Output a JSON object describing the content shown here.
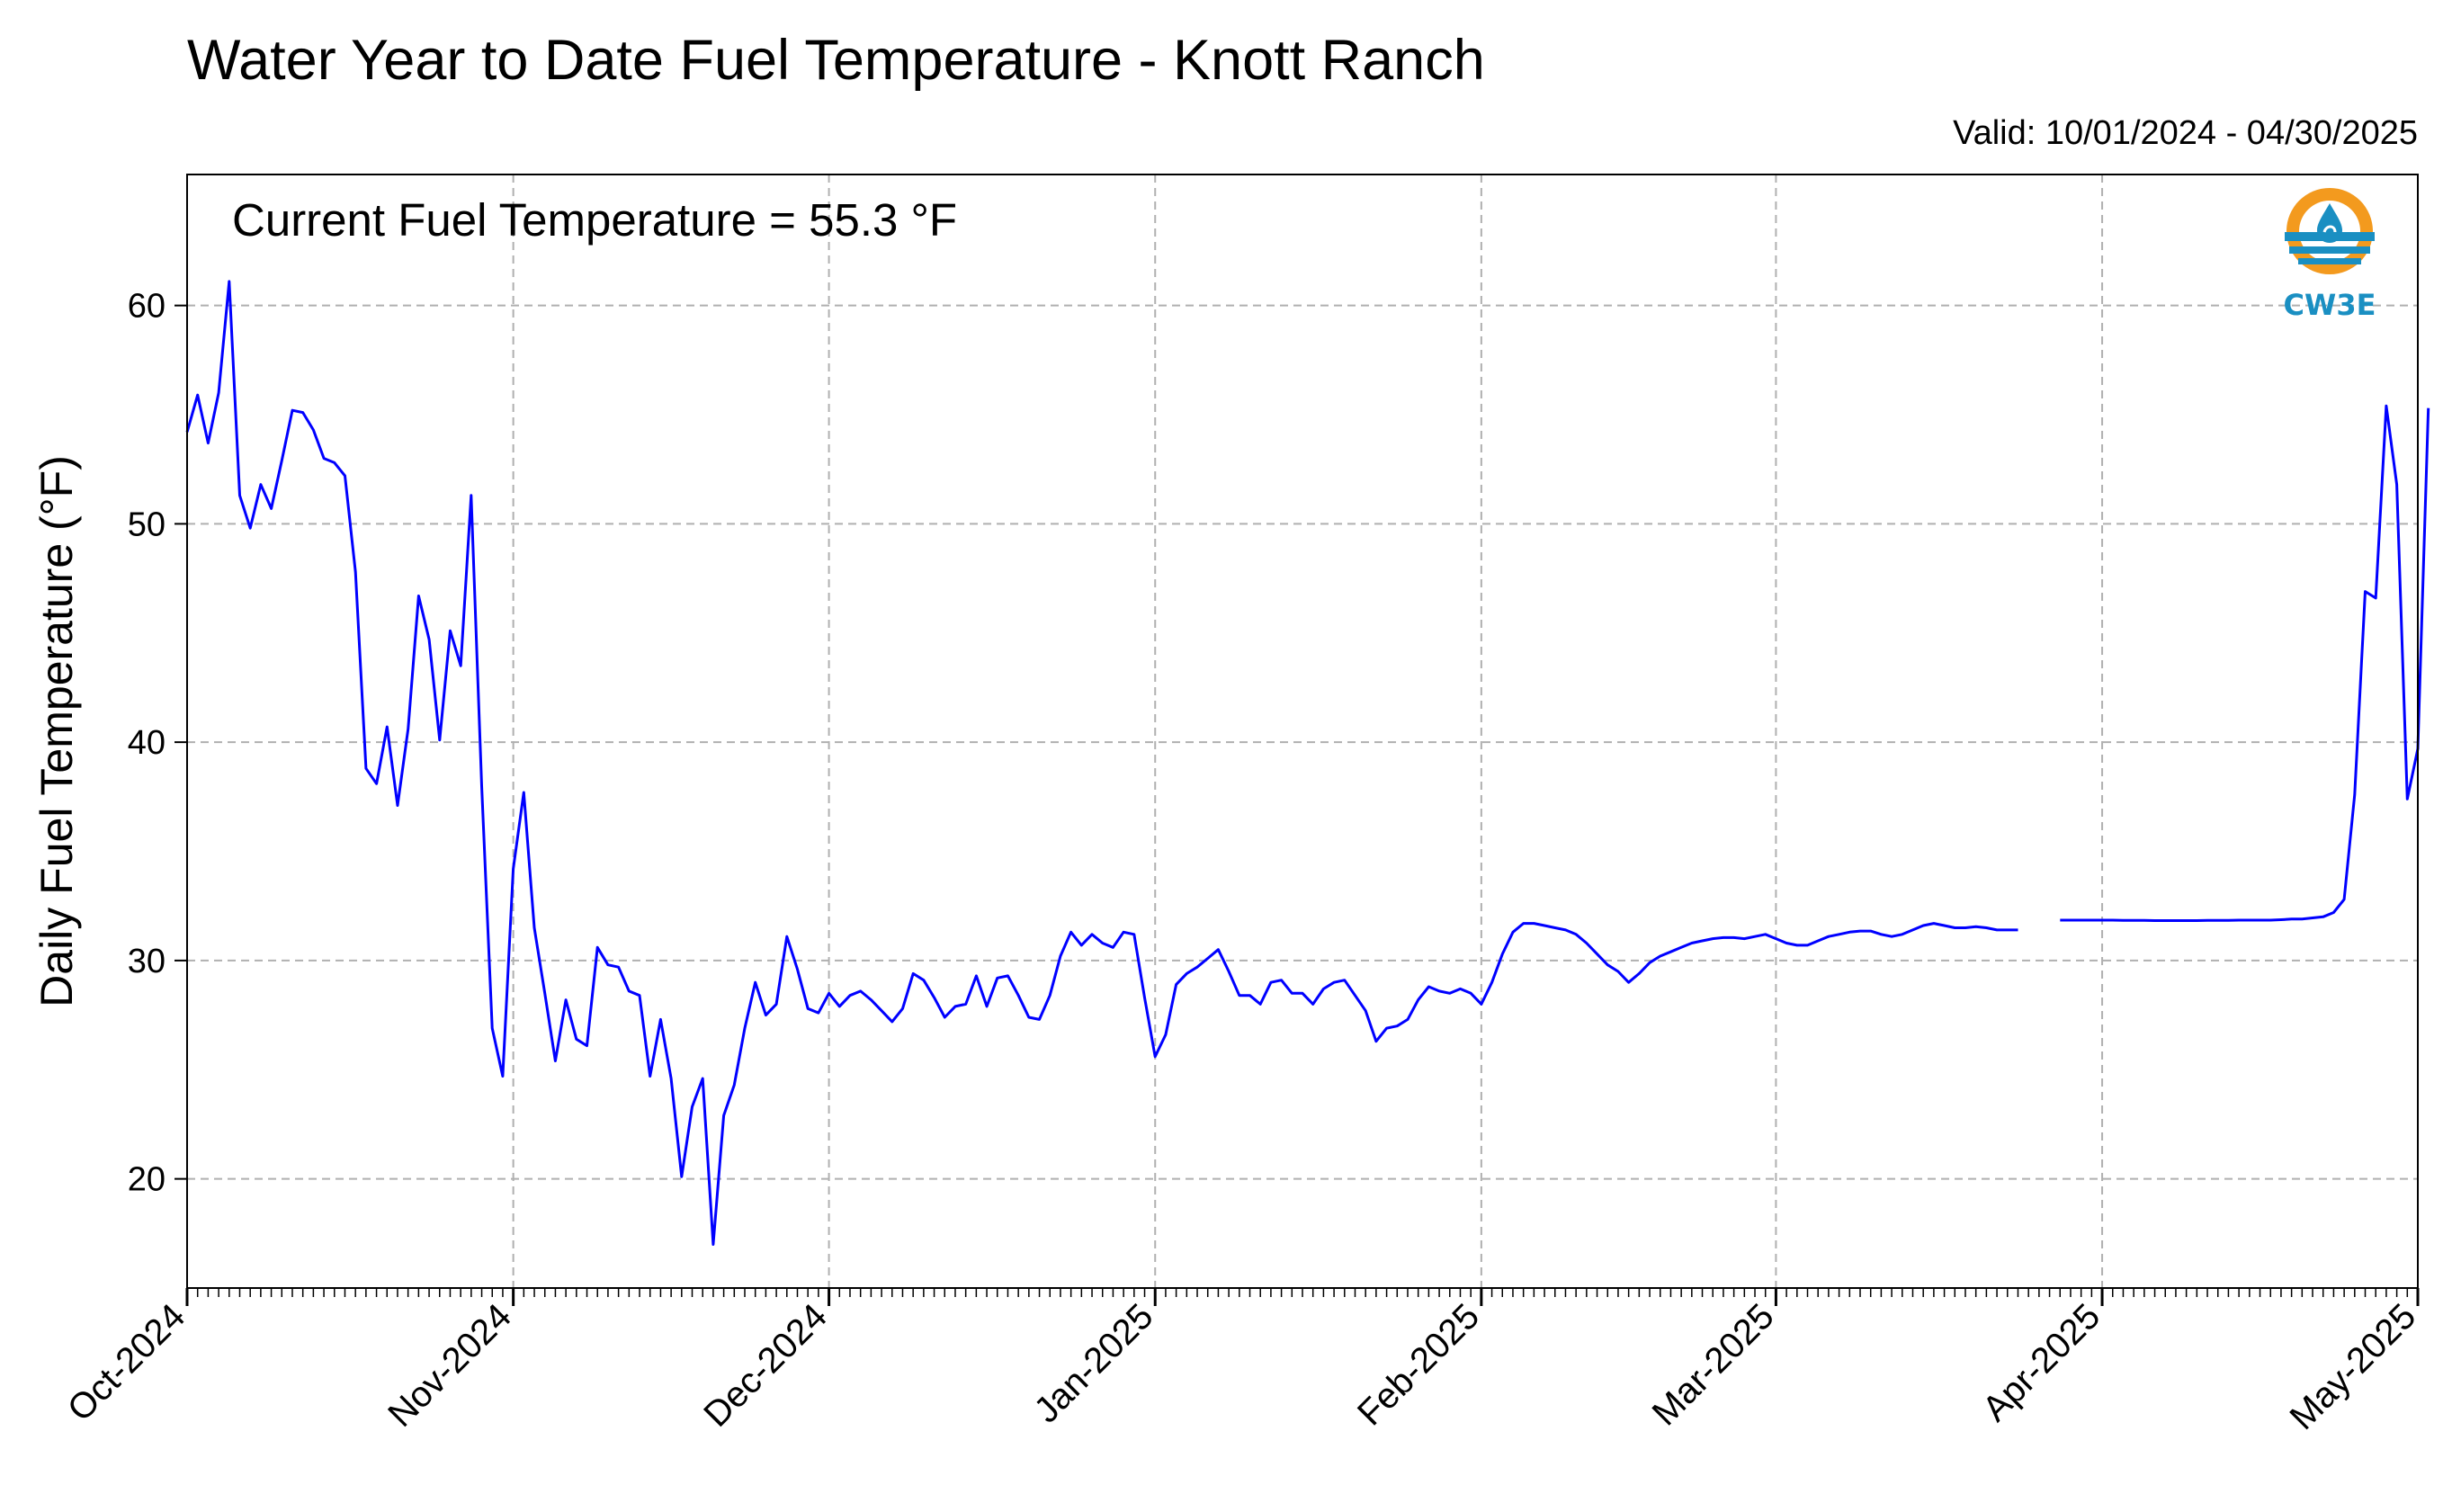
{
  "chart_data": {
    "type": "line",
    "title": "Water Year to Date Fuel Temperature - Knott Ranch",
    "valid_range": "Valid: 10/01/2024 - 04/30/2025",
    "annotation": "Current Fuel Temperature = 55.3 °F",
    "ylabel": "Daily Fuel Temperature (°F)",
    "ylim": [
      15,
      66
    ],
    "y_ticks": [
      20,
      30,
      40,
      50,
      60
    ],
    "x_ticks": [
      "Oct-2024",
      "Nov-2024",
      "Dec-2024",
      "Jan-2025",
      "Feb-2025",
      "Mar-2025",
      "Apr-2025",
      "May-2025"
    ],
    "x_start": "2024-10-01",
    "x_end": "2025-05-01",
    "grid": true,
    "series": [
      {
        "color": "#0000ff",
        "segments": [
          {
            "start": "2024-10-01",
            "values": [
              54.2,
              55.9,
              53.7,
              56.0,
              61.1,
              51.3,
              49.8,
              51.8,
              50.7,
              52.9,
              55.2,
              55.1,
              54.3,
              53.0,
              52.8,
              52.2,
              47.8,
              38.8,
              38.1,
              40.7,
              37.1,
              40.6,
              46.7,
              44.7,
              40.1,
              45.1,
              43.5,
              51.3,
              38.0,
              26.9,
              24.7,
              34.2,
              37.7,
              31.5,
              28.5,
              25.4,
              28.2,
              26.4,
              26.1,
              30.6,
              29.8,
              29.7,
              28.6,
              28.4,
              24.7,
              27.3,
              24.6,
              20.1,
              23.3,
              24.6,
              17.0,
              22.9,
              24.3,
              26.9,
              29.0,
              27.5,
              28.0,
              31.1,
              29.6,
              27.8,
              27.6,
              28.5,
              27.9,
              28.4,
              28.6,
              28.2,
              27.7,
              27.2,
              27.8,
              29.4,
              29.1,
              28.3,
              27.4,
              27.9,
              28.0,
              29.3,
              27.9,
              29.2,
              29.3,
              28.4,
              27.4,
              27.3,
              28.4,
              30.2,
              31.3,
              30.7,
              31.2,
              30.8,
              30.6,
              31.3,
              31.2,
              28.3,
              25.6,
              26.6,
              28.9,
              29.4,
              29.7,
              30.1,
              30.5,
              29.5,
              28.4,
              28.4,
              28.0,
              29.0,
              29.1,
              28.5,
              28.5,
              28.0,
              28.7,
              29.0,
              29.1,
              28.4,
              27.7,
              26.3,
              26.9,
              27.0,
              27.3,
              28.2,
              28.8,
              28.6,
              28.5,
              28.7,
              28.5,
              28.0,
              29.0,
              30.3,
              31.3,
              31.7,
              31.7,
              31.6,
              31.5,
              31.4,
              31.2,
              30.8,
              30.3,
              29.8,
              29.5,
              29.0,
              29.4,
              29.9,
              30.2,
              30.4,
              30.6,
              30.8,
              30.9,
              31.0,
              31.05,
              31.05,
              31.0,
              31.1,
              31.2,
              31.0,
              30.8,
              30.7,
              30.7,
              30.9,
              31.1,
              31.2,
              31.3,
              31.35,
              31.35,
              31.2,
              31.1,
              31.2,
              31.4,
              31.6,
              31.7,
              31.6,
              31.5,
              31.5,
              31.55,
              31.5,
              31.4,
              31.4,
              31.4
            ]
          },
          {
            "start": "2025-03-28",
            "values": [
              31.85,
              31.85,
              31.85,
              31.85,
              31.85,
              31.85,
              31.84,
              31.84,
              31.84,
              31.83,
              31.83,
              31.83,
              31.83,
              31.83,
              31.84,
              31.84,
              31.84,
              31.85,
              31.85,
              31.85,
              31.85,
              31.87,
              31.9,
              31.9,
              31.95,
              32.0,
              32.2,
              32.8,
              37.6,
              46.9,
              46.6,
              55.4,
              51.8,
              37.4,
              39.7,
              55.3
            ]
          }
        ]
      }
    ]
  },
  "logo": {
    "text": "CW3E",
    "orange": "#f39a1e",
    "blue": "#1a8fc2",
    "icon": "water-drop-icon"
  }
}
